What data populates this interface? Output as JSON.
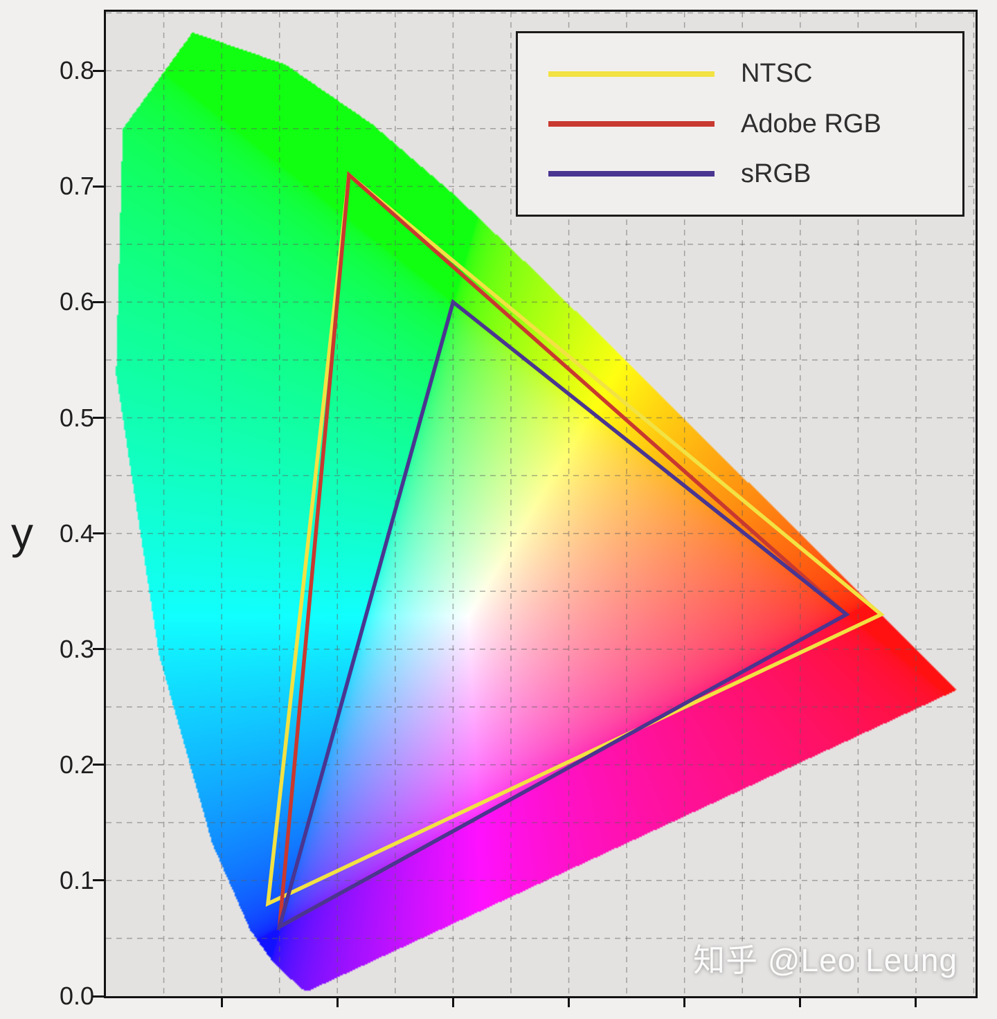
{
  "watermark": "知乎 @Leo Leung",
  "legend": {
    "position": "top-right",
    "entries": [
      "NTSC",
      "Adobe RGB",
      "sRGB"
    ]
  },
  "chart_data": {
    "type": "area",
    "subtype": "CIE 1931 xy chromaticity diagram with RGB gamut triangles",
    "title": "",
    "xlabel": "",
    "ylabel": "y",
    "xlim": [
      0,
      0.7515
    ],
    "ylim": [
      0,
      0.851
    ],
    "grid": true,
    "grid_step": 0.05,
    "ytick_values": [
      0.0,
      0.1,
      0.2,
      0.3,
      0.4,
      0.5,
      0.6,
      0.7,
      0.8
    ],
    "ytick_labels": [
      "0.0",
      "0.1",
      "0.2",
      "0.3",
      "0.4",
      "0.5",
      "0.6",
      "0.7",
      "0.8"
    ],
    "xtick_values": [
      0.1,
      0.2,
      0.3,
      0.4,
      0.5,
      0.6,
      0.7
    ],
    "legend_position": "top-right",
    "series": [
      {
        "name": "NTSC",
        "color": "#f2e243",
        "points": [
          [
            0.67,
            0.33
          ],
          [
            0.21,
            0.71
          ],
          [
            0.14,
            0.08
          ]
        ]
      },
      {
        "name": "Adobe RGB",
        "color": "#c8392f",
        "points": [
          [
            0.64,
            0.33
          ],
          [
            0.21,
            0.71
          ],
          [
            0.15,
            0.06
          ]
        ]
      },
      {
        "name": "sRGB",
        "color": "#4a3590",
        "points": [
          [
            0.64,
            0.33
          ],
          [
            0.3,
            0.6
          ],
          [
            0.15,
            0.06
          ]
        ]
      }
    ],
    "spectral_locus": [
      [
        0.1741,
        0.005
      ],
      [
        0.1733,
        0.0048
      ],
      [
        0.1726,
        0.0048
      ],
      [
        0.1714,
        0.0051
      ],
      [
        0.1689,
        0.0069
      ],
      [
        0.1644,
        0.0109
      ],
      [
        0.1566,
        0.0177
      ],
      [
        0.144,
        0.0297
      ],
      [
        0.1241,
        0.0578
      ],
      [
        0.0913,
        0.1327
      ],
      [
        0.0454,
        0.295
      ],
      [
        0.0082,
        0.5384
      ],
      [
        0.0139,
        0.7502
      ],
      [
        0.0743,
        0.8338
      ],
      [
        0.1547,
        0.8059
      ],
      [
        0.2296,
        0.7543
      ],
      [
        0.3016,
        0.6923
      ],
      [
        0.3731,
        0.6245
      ],
      [
        0.4441,
        0.5547
      ],
      [
        0.5125,
        0.4866
      ],
      [
        0.5752,
        0.4242
      ],
      [
        0.627,
        0.3725
      ],
      [
        0.6658,
        0.334
      ],
      [
        0.6915,
        0.3083
      ],
      [
        0.7079,
        0.292
      ],
      [
        0.719,
        0.2809
      ],
      [
        0.726,
        0.274
      ],
      [
        0.73,
        0.27
      ],
      [
        0.732,
        0.268
      ],
      [
        0.7334,
        0.2666
      ],
      [
        0.7344,
        0.2656
      ],
      [
        0.7347,
        0.2653
      ]
    ]
  }
}
